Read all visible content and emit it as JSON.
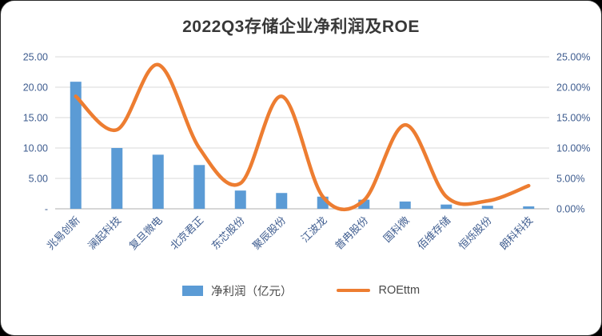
{
  "chart_data": {
    "type": "combo",
    "title": "2022Q3存储企业净利润及ROE",
    "categories": [
      "兆易创新",
      "澜起科技",
      "复旦微电",
      "北京君正",
      "东芯股份",
      "聚辰股份",
      "江波龙",
      "普冉股份",
      "国科微",
      "佰维存储",
      "恒烁股份",
      "朗科科技"
    ],
    "series": [
      {
        "name": "净利润（亿元）",
        "type": "bar",
        "axis": "left",
        "values": [
          20.9,
          10.0,
          8.9,
          7.2,
          3.0,
          2.6,
          2.0,
          1.5,
          1.2,
          0.7,
          0.5,
          0.4
        ]
      },
      {
        "name": "ROEttm",
        "type": "line",
        "axis": "right",
        "unit": "%",
        "values": [
          18.5,
          13.0,
          23.7,
          10.0,
          4.2,
          18.5,
          2.0,
          1.4,
          13.8,
          2.0,
          1.3,
          3.8
        ]
      }
    ],
    "left_axis": {
      "min": 0,
      "max": 25,
      "step": 5,
      "tick_labels": [
        "-",
        "5.00",
        "10.00",
        "15.00",
        "20.00",
        "25.00"
      ]
    },
    "right_axis": {
      "min": 0,
      "max": 25,
      "step": 5,
      "tick_labels": [
        "0.00%",
        "5.00%",
        "10.00%",
        "15.00%",
        "20.00%",
        "25.00%"
      ]
    },
    "grid": true,
    "legend_position": "bottom",
    "colors": {
      "bar": "#5B9BD5",
      "line": "#ED7D31",
      "axis_label": "#3E5C8F",
      "gridline": "#D9D9D9",
      "axis_line": "#BFBFBF",
      "title": "#383838"
    }
  }
}
